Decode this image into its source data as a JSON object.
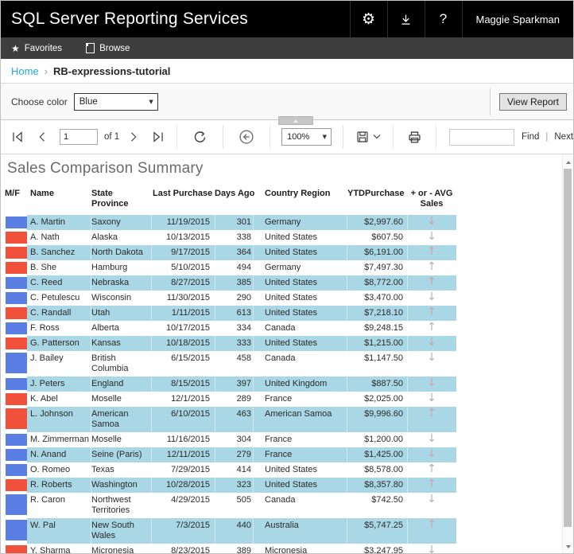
{
  "header": {
    "app_title": "SQL Server Reporting Services",
    "user_name": "Maggie Sparkman"
  },
  "nav_tabs": {
    "favorites_label": "Favorites",
    "browse_label": "Browse"
  },
  "breadcrumb": {
    "home_label": "Home",
    "separator": "›",
    "current_page": "RB-expressions-tutorial"
  },
  "parameters": {
    "choose_color_label": "Choose color",
    "choose_color_value": "Blue",
    "view_report_label": "View Report"
  },
  "toolbar": {
    "current_page": "1",
    "page_count_label": "of 1",
    "zoom_value": "100%",
    "search_value": "",
    "find_label": "Find",
    "find_separator": "|",
    "next_label": "Next"
  },
  "icons": {
    "gear": "⚙",
    "help": "?",
    "star": "★",
    "dropdown_caret": "▼",
    "up_arrow": "↑",
    "down_arrow": "↓"
  },
  "report": {
    "title": "Sales Comparison Summary",
    "columns": [
      "M/F",
      "Name",
      "State Province",
      "Last Purchase",
      "Days Ago",
      "Country Region",
      "YTDPurchase",
      "+ or - AVG Sales"
    ],
    "rows": [
      {
        "mf": "blue",
        "name": "A. Martin",
        "state_province": "Saxony",
        "last_purchase": "11/19/2015",
        "days_ago": "301",
        "country_region": "Germany",
        "ytd_purchase": "$2,997.60",
        "trend": "down"
      },
      {
        "mf": "red",
        "name": "A. Nath",
        "state_province": "Alaska",
        "last_purchase": "10/13/2015",
        "days_ago": "338",
        "country_region": "United States",
        "ytd_purchase": "$607.50",
        "trend": "down"
      },
      {
        "mf": "red",
        "name": "B. Sanchez",
        "state_province": "North Dakota",
        "last_purchase": "9/17/2015",
        "days_ago": "364",
        "country_region": "United States",
        "ytd_purchase": "$6,191.00",
        "trend": "up"
      },
      {
        "mf": "red",
        "name": "B. She",
        "state_province": "Hamburg",
        "last_purchase": "5/10/2015",
        "days_ago": "494",
        "country_region": "Germany",
        "ytd_purchase": "$7,497.30",
        "trend": "up"
      },
      {
        "mf": "blue",
        "name": "C. Reed",
        "state_province": "Nebraska",
        "last_purchase": "8/27/2015",
        "days_ago": "385",
        "country_region": "United States",
        "ytd_purchase": "$8,772.00",
        "trend": "up"
      },
      {
        "mf": "blue",
        "name": "C. Petulescu",
        "state_province": "Wisconsin",
        "last_purchase": "11/30/2015",
        "days_ago": "290",
        "country_region": "United States",
        "ytd_purchase": "$3,470.00",
        "trend": "down"
      },
      {
        "mf": "red",
        "name": "C. Randall",
        "state_province": "Utah",
        "last_purchase": "1/11/2015",
        "days_ago": "613",
        "country_region": "United States",
        "ytd_purchase": "$7,218.10",
        "trend": "up"
      },
      {
        "mf": "blue",
        "name": "F. Ross",
        "state_province": "Alberta",
        "last_purchase": "10/17/2015",
        "days_ago": "334",
        "country_region": "Canada",
        "ytd_purchase": "$9,248.15",
        "trend": "up"
      },
      {
        "mf": "red",
        "name": "G. Patterson",
        "state_province": "Kansas",
        "last_purchase": "10/18/2015",
        "days_ago": "333",
        "country_region": "United States",
        "ytd_purchase": "$1,215.00",
        "trend": "down"
      },
      {
        "mf": "blue",
        "name": "J. Bailey",
        "state_province": "British Columbia",
        "last_purchase": "6/15/2015",
        "days_ago": "458",
        "country_region": "Canada",
        "ytd_purchase": "$1,147.50",
        "trend": "down"
      },
      {
        "mf": "blue",
        "name": "J. Peters",
        "state_province": "England",
        "last_purchase": "8/15/2015",
        "days_ago": "397",
        "country_region": "United Kingdom",
        "ytd_purchase": "$887.50",
        "trend": "down"
      },
      {
        "mf": "red",
        "name": "K. Abel",
        "state_province": "Moselle",
        "last_purchase": "12/1/2015",
        "days_ago": "289",
        "country_region": "France",
        "ytd_purchase": "$2,025.00",
        "trend": "down"
      },
      {
        "mf": "red",
        "name": "L. Johnson",
        "state_province": "American Samoa",
        "last_purchase": "6/10/2015",
        "days_ago": "463",
        "country_region": "American Samoa",
        "ytd_purchase": "$9,996.60",
        "trend": "up"
      },
      {
        "mf": "blue",
        "name": "M. Zimmerman",
        "state_province": "Moselle",
        "last_purchase": "11/16/2015",
        "days_ago": "304",
        "country_region": "France",
        "ytd_purchase": "$1,200.00",
        "trend": "down"
      },
      {
        "mf": "blue",
        "name": "N. Anand",
        "state_province": "Seine (Paris)",
        "last_purchase": "12/11/2015",
        "days_ago": "279",
        "country_region": "France",
        "ytd_purchase": "$1,425.00",
        "trend": "down"
      },
      {
        "mf": "blue",
        "name": "O. Romeo",
        "state_province": "Texas",
        "last_purchase": "7/29/2015",
        "days_ago": "414",
        "country_region": "United States",
        "ytd_purchase": "$8,578.00",
        "trend": "up"
      },
      {
        "mf": "red",
        "name": "R. Roberts",
        "state_province": "Washington",
        "last_purchase": "10/28/2015",
        "days_ago": "323",
        "country_region": "United States",
        "ytd_purchase": "$8,357.80",
        "trend": "up"
      },
      {
        "mf": "blue",
        "name": "R. Caron",
        "state_province": "Northwest Territories",
        "last_purchase": "4/29/2015",
        "days_ago": "505",
        "country_region": "Canada",
        "ytd_purchase": "$742.50",
        "trend": "down"
      },
      {
        "mf": "blue",
        "name": "W. Pal",
        "state_province": "New South Wales",
        "last_purchase": "7/3/2015",
        "days_ago": "440",
        "country_region": "Australia",
        "ytd_purchase": "$5,747.25",
        "trend": "up"
      },
      {
        "mf": "red",
        "name": "Y. Sharma",
        "state_province": "Micronesia",
        "last_purchase": "8/23/2015",
        "days_ago": "389",
        "country_region": "Micronesia",
        "ytd_purchase": "$3,247.95",
        "trend": "down"
      }
    ]
  },
  "colors": {
    "male_square": "#5b7ee4",
    "female_square": "#f1503b",
    "row_stripe": "#a9d7e6",
    "breadcrumb_link": "#28a4e0",
    "header_bar": "#000000"
  }
}
